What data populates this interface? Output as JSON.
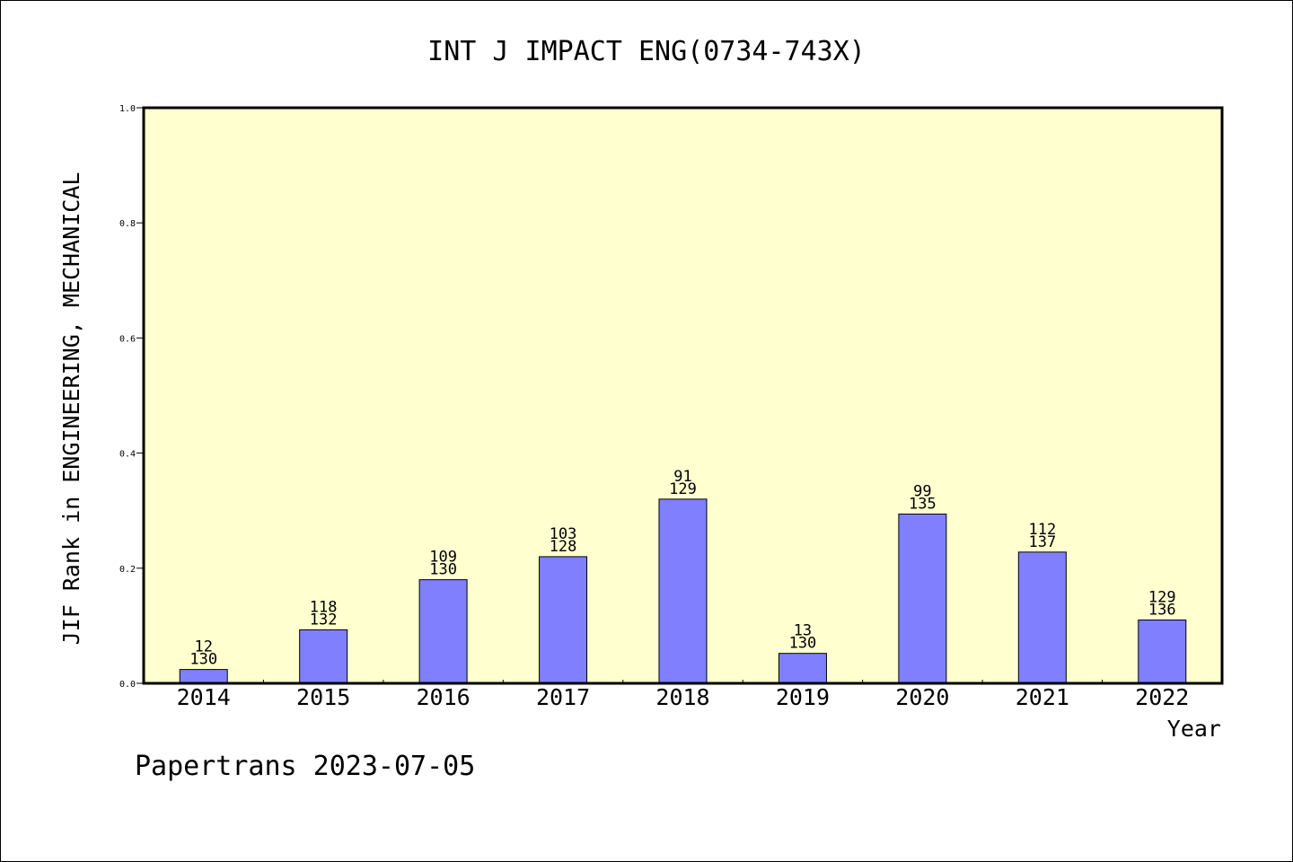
{
  "chart_data": {
    "type": "bar",
    "title": "INT J IMPACT ENG(0734-743X)",
    "xlabel": "Year",
    "ylabel": "JIF Rank in ENGINEERING, MECHANICAL",
    "ylim": [
      0,
      1.0
    ],
    "yticks": [
      "0.0",
      "0.2",
      "0.4",
      "0.6",
      "0.8",
      "1.0"
    ],
    "categories": [
      "2014",
      "2015",
      "2016",
      "2017",
      "2018",
      "2019",
      "2020",
      "2021",
      "2022"
    ],
    "ranks": [
      "12",
      "118",
      "109",
      "103",
      "91",
      "13",
      "99",
      "112",
      "129"
    ],
    "totals": [
      "130",
      "132",
      "130",
      "128",
      "129",
      "130",
      "135",
      "137",
      "136"
    ],
    "values": [
      0.024,
      0.093,
      0.18,
      0.22,
      0.32,
      0.052,
      0.294,
      0.228,
      0.11
    ],
    "grid": false,
    "colors": {
      "bar": "#8080ff",
      "plot_bg": "#ffffd0",
      "axis": "#000000"
    }
  },
  "footer": "Papertrans 2023-07-05"
}
